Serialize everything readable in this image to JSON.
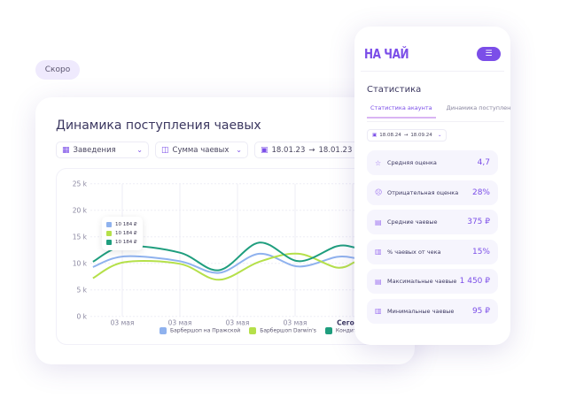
{
  "badge": "Скоро",
  "card": {
    "title": "Динамика поступления чаевых",
    "filters": [
      {
        "icon": "grid-icon",
        "label": "Заведения"
      },
      {
        "icon": "chart-icon",
        "label": "Сумма чаевых"
      },
      {
        "icon": "calendar-icon",
        "from": "18.01.23",
        "arrow": "→",
        "to": "18.01.23"
      }
    ],
    "tooltip": [
      "10 184 ₽",
      "10 184 ₽",
      "10 184 ₽"
    ]
  },
  "chart_data": {
    "type": "line",
    "yticks": [
      "0 k",
      "5 k",
      "10 k",
      "15 k",
      "20 k",
      "25 k"
    ],
    "ylim": [
      0,
      25000
    ],
    "xticks": [
      "03 мая",
      "03 мая",
      "03 мая",
      "03 мая",
      "Сегодня"
    ],
    "grid": true,
    "legend_position": "bottom",
    "series": [
      {
        "name": "Барбершоп на Пражской",
        "color": "#8fb2ee",
        "x": [
          0.49,
          1.03,
          2.0,
          2.68,
          3.38,
          4.06,
          4.72,
          5.03
        ],
        "values": [
          9300,
          11300,
          10400,
          8200,
          11800,
          9400,
          11200,
          11000
        ]
      },
      {
        "name": "Барбершоп Darwin's",
        "color": "#b5e04a",
        "x": [
          0.49,
          1.03,
          2.0,
          2.68,
          3.38,
          4.06,
          4.72,
          5.03
        ],
        "values": [
          7200,
          10200,
          9900,
          6900,
          10300,
          11800,
          9200,
          10200
        ]
      },
      {
        "name": "Кондитерская",
        "color": "#1f9e7e",
        "x": [
          0.49,
          1.03,
          2.0,
          2.68,
          3.38,
          4.06,
          4.72,
          5.03
        ],
        "values": [
          10300,
          13200,
          12000,
          8700,
          13900,
          10400,
          13200,
          13000
        ]
      }
    ]
  },
  "phone": {
    "logo": "НА ЧАЙ",
    "heading": "Статистика",
    "tabs": [
      "Статистика акаунта",
      "Динамика поступления ч"
    ],
    "date": {
      "from": "18.08.24",
      "arrow": "→",
      "to": "18.09.24"
    },
    "stats": [
      {
        "icon": "star-icon",
        "label": "Средняя оценка",
        "value": "4,7"
      },
      {
        "icon": "sad-face-icon",
        "label": "Отрицательная оценка",
        "value": "28%"
      },
      {
        "icon": "money-icon",
        "label": "Средние чаевые",
        "value": "375 ₽"
      },
      {
        "icon": "receipt-icon",
        "label": "% чаевых от чека",
        "value": "15%"
      },
      {
        "icon": "money-icon",
        "label": "Максимальные чаевые",
        "value": "1 450 ₽"
      },
      {
        "icon": "receipt-icon",
        "label": "Минимальные чаевые",
        "value": "95 ₽"
      }
    ]
  }
}
